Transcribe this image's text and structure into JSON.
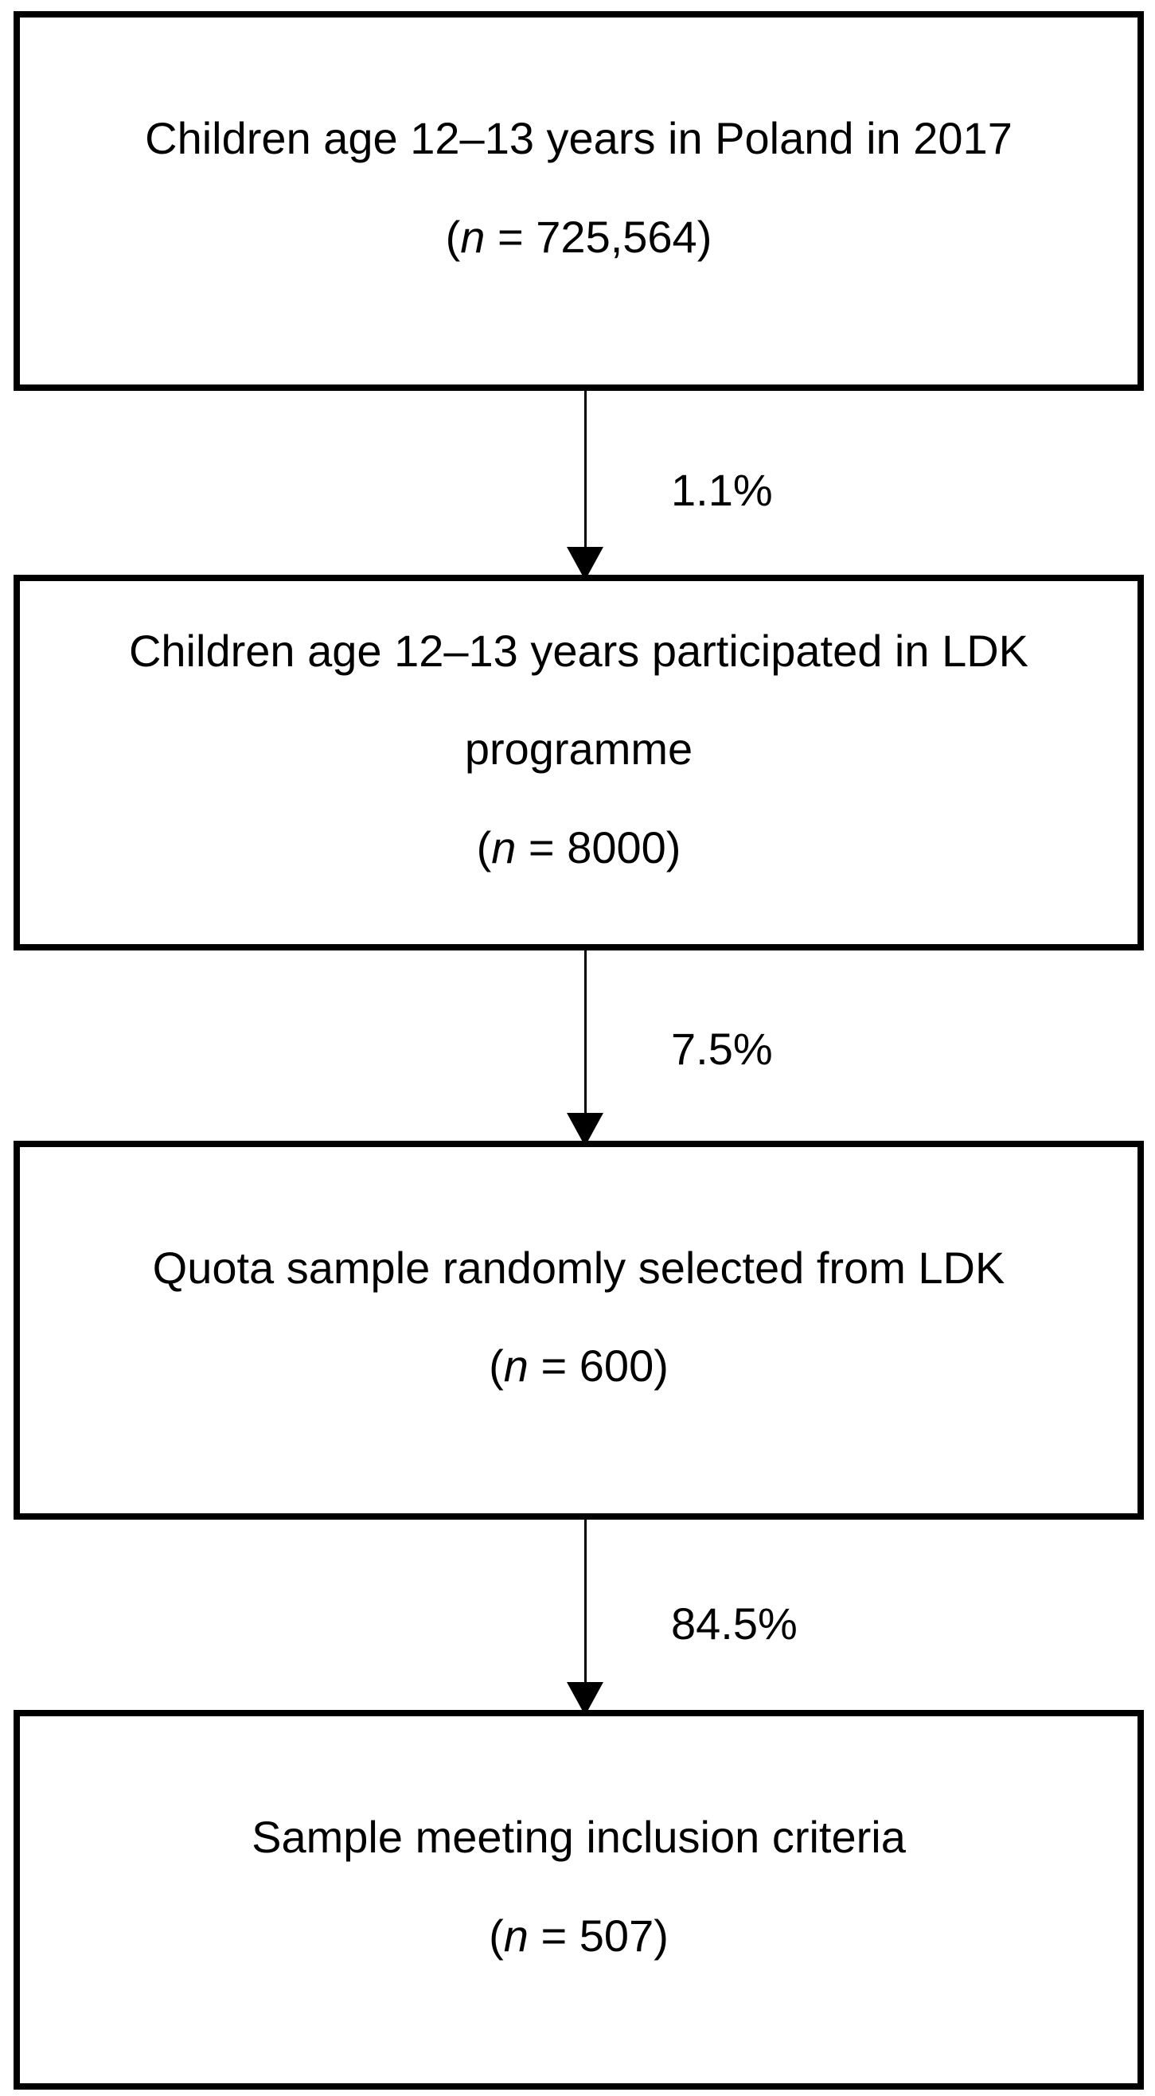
{
  "diagram": {
    "type": "participant-flow",
    "colors": {
      "box_border": "#000000",
      "text": "#000000",
      "background": "#ffffff"
    },
    "boxes": [
      {
        "lines": [
          "Children age 12–13 years in Poland in 2017"
        ],
        "n_open": "(",
        "n_var": "n",
        "n_rest": " = 725,564)"
      },
      {
        "lines": [
          "Children age 12–13 years participated in LDK",
          "programme"
        ],
        "n_open": "(",
        "n_var": "n",
        "n_rest": " = 8000)"
      },
      {
        "lines": [
          "Quota sample randomly selected from LDK"
        ],
        "n_open": "(",
        "n_var": "n",
        "n_rest": " = 600)"
      },
      {
        "lines": [
          "Sample meeting inclusion criteria"
        ],
        "n_open": "(",
        "n_var": "n",
        "n_rest": " = 507)"
      }
    ],
    "arrows": [
      {
        "label": "1.1%"
      },
      {
        "label": "7.5%"
      },
      {
        "label": "84.5%"
      }
    ]
  }
}
